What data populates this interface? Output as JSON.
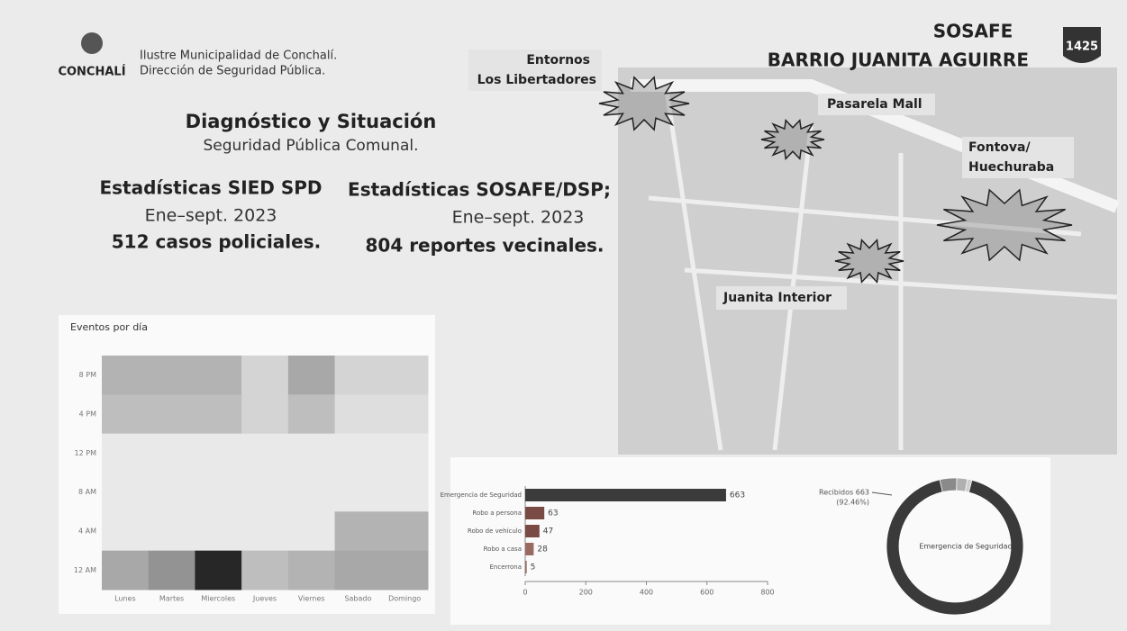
{
  "header": {
    "logo": "CONCHALÍ",
    "org_line1": "Ilustre Municipalidad de Conchalí.",
    "org_line2": "Dirección de Seguridad Pública.",
    "brand": "SOSAFE",
    "title": "BARRIO JUANITA AGUIRRE",
    "badge": "1425"
  },
  "intro": {
    "title": "Diagnóstico y Situación",
    "subtitle": "Seguridad Pública Comunal."
  },
  "stats": [
    {
      "title": "Estadísticas SIED SPD",
      "period": "Ene–sept. 2023",
      "total": "512 casos policiales."
    },
    {
      "title": "Estadísticas SOSAFE/DSP;",
      "period": "Ene–sept. 2023",
      "total": "804 reportes vecinales."
    }
  ],
  "map": {
    "labels": [
      "Entornos",
      "Los Libertadores",
      "Pasarela Mall",
      "Fontova/",
      "Huechuraba",
      "Juanita Interior"
    ]
  },
  "chart_data": [
    {
      "type": "heatmap",
      "title": "Eventos por día",
      "categories": [
        "Lunes",
        "Martes",
        "Miercoles",
        "Jueves",
        "Viernes",
        "Sabado",
        "Domingo"
      ],
      "rows": [
        "8 PM",
        "4 PM",
        "12 PM",
        "8 AM",
        "4 AM",
        "12 AM"
      ],
      "values": [
        [
          30,
          30,
          30,
          15,
          35,
          15,
          15
        ],
        [
          25,
          25,
          25,
          15,
          25,
          10,
          10
        ],
        [
          5,
          5,
          5,
          5,
          5,
          5,
          5
        ],
        [
          5,
          5,
          5,
          5,
          5,
          5,
          5
        ],
        [
          5,
          5,
          5,
          5,
          5,
          30,
          30
        ],
        [
          35,
          45,
          95,
          25,
          30,
          35,
          35
        ]
      ],
      "color_min": "#f4f4f4",
      "color_max": "#1c1c1c",
      "vlim": [
        0,
        100
      ]
    },
    {
      "type": "hbar",
      "categories": [
        "Emergencia de Seguridad",
        "Robo a persona",
        "Robo de vehículo",
        "Robo a casa",
        "Encerrona"
      ],
      "values": [
        663,
        63,
        47,
        28,
        5
      ],
      "colors": [
        "#3b3b3b",
        "#7a4a45",
        "#7a4a45",
        "#9a6a62",
        "#9a6a62"
      ],
      "xlim": [
        0,
        800
      ],
      "xticks": [
        0,
        200,
        400,
        600,
        800
      ]
    },
    {
      "type": "donut",
      "categories": [
        "Emergencia de Seguridad",
        null,
        null,
        null
      ],
      "values": [
        92.46,
        4,
        2.5,
        1.04
      ],
      "colors": [
        "#3a3a3a",
        "#8a8a8a",
        "#b0b0b0",
        "#cfcfcf"
      ],
      "annotation": [
        "Recibidos 663",
        "(92.46%)"
      ]
    }
  ]
}
